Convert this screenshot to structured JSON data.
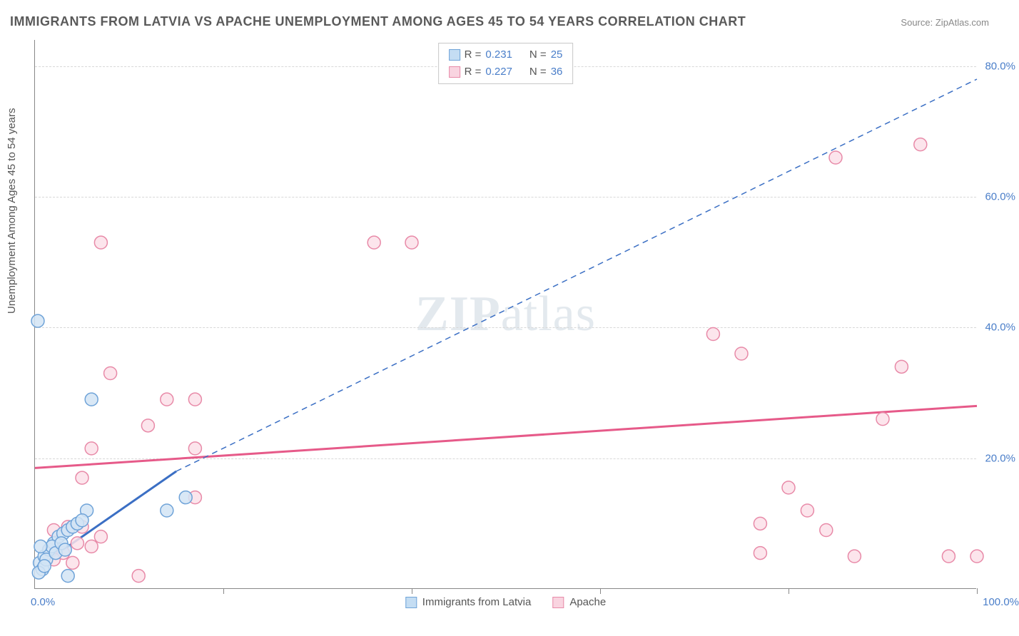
{
  "title": "IMMIGRANTS FROM LATVIA VS APACHE UNEMPLOYMENT AMONG AGES 45 TO 54 YEARS CORRELATION CHART",
  "source_label": "Source:",
  "source_name": "ZipAtlas.com",
  "y_axis_label": "Unemployment Among Ages 45 to 54 years",
  "watermark": {
    "bold": "ZIP",
    "rest": "atlas"
  },
  "chart": {
    "type": "scatter",
    "xlim": [
      0,
      100
    ],
    "ylim": [
      0,
      84
    ],
    "x_ticks": [
      0,
      20,
      40,
      60,
      80,
      100
    ],
    "y_ticks": [
      20,
      40,
      60,
      80
    ],
    "y_tick_labels": [
      "20.0%",
      "40.0%",
      "60.0%",
      "80.0%"
    ],
    "x_label_lo": "0.0%",
    "x_label_hi": "100.0%",
    "grid_color": "#d8d8d8",
    "background_color": "#ffffff",
    "axis_color": "#888888",
    "tick_label_color": "#4a7ec9",
    "marker_radius": 9,
    "marker_stroke_width": 1.5,
    "series": [
      {
        "name": "Immigrants from Latvia",
        "fill": "#d2e4f5",
        "stroke": "#6fa3d8",
        "legend_fill": "#c4ddf3",
        "legend_stroke": "#6fa3d8",
        "R": "0.231",
        "N": "25",
        "trend": {
          "x1": 0,
          "y1": 3,
          "x2": 15,
          "y2": 18,
          "dashed": false,
          "color": "#3b6fc4",
          "width": 3,
          "ext_x2": 100,
          "ext_y2": 78,
          "ext_dashed": true
        },
        "points": [
          [
            0.3,
            41
          ],
          [
            6.0,
            29
          ],
          [
            14,
            12
          ],
          [
            16,
            14
          ],
          [
            5.5,
            12
          ],
          [
            3.5,
            2
          ],
          [
            0.5,
            4
          ],
          [
            1,
            5
          ],
          [
            1.5,
            6
          ],
          [
            2,
            7
          ],
          [
            2.5,
            8
          ],
          [
            3,
            8.5
          ],
          [
            3.5,
            9
          ],
          [
            4,
            9.5
          ],
          [
            0.8,
            3
          ],
          [
            1.2,
            4.5
          ],
          [
            1.8,
            6.5
          ],
          [
            2.2,
            5.5
          ],
          [
            2.8,
            7
          ],
          [
            0.4,
            2.5
          ],
          [
            1.0,
            3.5
          ],
          [
            4.5,
            10
          ],
          [
            5.0,
            10.5
          ],
          [
            3.2,
            6
          ],
          [
            0.6,
            6.5
          ]
        ]
      },
      {
        "name": "Apache",
        "fill": "#fbe0e9",
        "stroke": "#e88aa8",
        "legend_fill": "#f9d4e0",
        "legend_stroke": "#e88aa8",
        "R": "0.227",
        "N": "36",
        "trend": {
          "x1": 0,
          "y1": 18.5,
          "x2": 100,
          "y2": 28,
          "dashed": false,
          "color": "#e65a89",
          "width": 3
        },
        "points": [
          [
            7,
            53
          ],
          [
            36,
            53
          ],
          [
            40,
            53
          ],
          [
            8,
            33
          ],
          [
            14,
            29
          ],
          [
            17,
            29
          ],
          [
            12,
            25
          ],
          [
            17,
            21.5
          ],
          [
            6,
            21.5
          ],
          [
            5,
            17
          ],
          [
            17,
            14
          ],
          [
            11,
            2
          ],
          [
            2,
            9
          ],
          [
            3.5,
            9.5
          ],
          [
            5,
            9.5
          ],
          [
            7,
            8
          ],
          [
            4.5,
            7
          ],
          [
            6,
            6.5
          ],
          [
            3,
            5.5
          ],
          [
            2,
            4.5
          ],
          [
            1.5,
            6
          ],
          [
            4,
            4
          ],
          [
            72,
            39
          ],
          [
            75,
            36
          ],
          [
            80,
            15.5
          ],
          [
            82,
            12
          ],
          [
            77,
            10
          ],
          [
            84,
            9
          ],
          [
            77,
            5.5
          ],
          [
            87,
            5
          ],
          [
            92,
            34
          ],
          [
            90,
            26
          ],
          [
            100,
            5
          ],
          [
            97,
            5
          ],
          [
            85,
            66
          ],
          [
            94,
            68
          ]
        ]
      }
    ]
  },
  "legend_top": {
    "R_label": "R  =",
    "N_label": "N  ="
  },
  "legend_bottom": [
    {
      "label": "Immigrants from Latvia",
      "series": 0
    },
    {
      "label": "Apache",
      "series": 1
    }
  ]
}
